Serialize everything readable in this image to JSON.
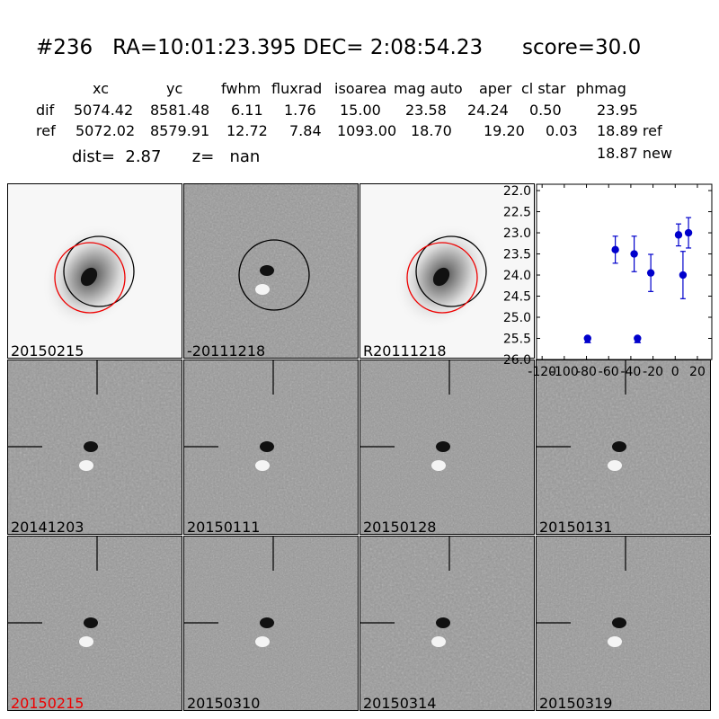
{
  "header": {
    "title": "#236   RA=10:01:23.395 DEC= 2:08:54.23      score=30.0"
  },
  "table": {
    "columns": [
      "xc",
      "yc",
      "fwhm",
      "fluxrad",
      "isoarea",
      "mag auto",
      "aper",
      "cl star",
      "phmag"
    ],
    "rows": [
      {
        "label": "dif",
        "values": [
          "5074.42",
          "8581.48",
          "6.11",
          "1.76",
          "15.00",
          "23.58",
          "24.24",
          "0.50",
          "23.95"
        ]
      },
      {
        "label": "ref",
        "values": [
          "5072.02",
          "8579.91",
          "12.72",
          "7.84",
          "1093.00",
          "18.70",
          "19.20",
          "0.03",
          "18.89 ref"
        ]
      }
    ],
    "extra": "18.87 new"
  },
  "info": {
    "text": "dist=  2.87      z=   nan"
  },
  "panels": [
    {
      "label": "20150215",
      "kind": "galaxy",
      "red": false
    },
    {
      "label": "-20111218",
      "kind": "dif",
      "red": false
    },
    {
      "label": "R20111218",
      "kind": "galaxy",
      "red": false
    },
    {
      "label": "20141203",
      "kind": "stamp",
      "red": false
    },
    {
      "label": "20150111",
      "kind": "stamp",
      "red": false
    },
    {
      "label": "20150128",
      "kind": "stamp",
      "red": false
    },
    {
      "label": "20150131",
      "kind": "stamp",
      "red": false
    },
    {
      "label": "20150215",
      "kind": "stamp",
      "red": true
    },
    {
      "label": "20150310",
      "kind": "stamp",
      "red": false
    },
    {
      "label": "20150314",
      "kind": "stamp",
      "red": false
    },
    {
      "label": "20150319",
      "kind": "stamp",
      "red": false
    }
  ],
  "chart_data": {
    "type": "scatter",
    "title": "",
    "xlabel": "",
    "ylabel": "",
    "xlim": [
      -125,
      33
    ],
    "ylim": [
      26.0,
      21.85
    ],
    "y_inverted": true,
    "xticks": [
      "-120",
      "-100",
      "-80",
      "-60",
      "-40",
      "-20",
      "0",
      "20"
    ],
    "yticks": [
      "22.0",
      "22.5",
      "23.0",
      "23.5",
      "24.0",
      "24.5",
      "25.0",
      "25.5",
      "26.0"
    ],
    "color": "#0000cc",
    "points": [
      {
        "x": -79,
        "y": 25.5,
        "err": 0.04
      },
      {
        "x": -54,
        "y": 23.4,
        "err": 0.32
      },
      {
        "x": -37,
        "y": 23.5,
        "err": 0.42
      },
      {
        "x": -34,
        "y": 25.5,
        "err": 0.04
      },
      {
        "x": -22,
        "y": 23.95,
        "err": 0.44
      },
      {
        "x": 3,
        "y": 23.05,
        "err": 0.26
      },
      {
        "x": 7,
        "y": 24.0,
        "err": 0.56
      },
      {
        "x": 12,
        "y": 23.0,
        "err": 0.36
      }
    ],
    "upper_limits": [
      {
        "x": -79,
        "y": 25.55
      },
      {
        "x": -34,
        "y": 25.55
      }
    ]
  }
}
